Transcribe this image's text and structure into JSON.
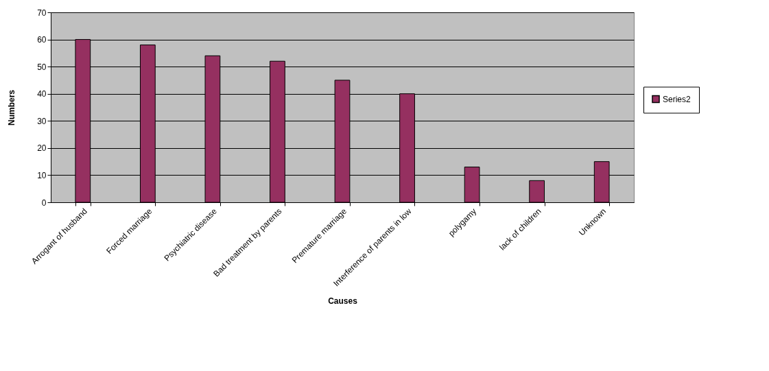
{
  "chart_data": {
    "type": "bar",
    "xlabel": "Causes",
    "ylabel": "Numbers",
    "categories": [
      "Arrogant of husband",
      "Forced marriage",
      "Psychiatric disease",
      "Bad treatment by parents",
      "Premature marriage",
      "Interference of parents in low",
      "polygamy",
      "lack of children",
      "Unknown"
    ],
    "series": [
      {
        "name": "Series2",
        "color": "#953060",
        "values": [
          60,
          58,
          54,
          52,
          45,
          40,
          13,
          8,
          15
        ]
      }
    ],
    "ylim": [
      0,
      70
    ],
    "yticks": [
      0,
      10,
      20,
      30,
      40,
      50,
      60,
      70
    ],
    "grid": "y",
    "legend": "right"
  }
}
